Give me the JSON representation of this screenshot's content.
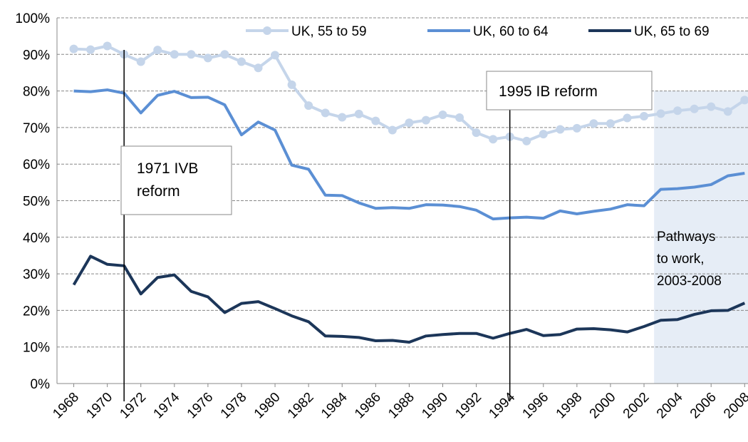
{
  "chart_data": {
    "type": "line",
    "x": [
      1968,
      1969,
      1970,
      1971,
      1972,
      1973,
      1974,
      1975,
      1976,
      1977,
      1978,
      1979,
      1980,
      1981,
      1982,
      1983,
      1984,
      1985,
      1986,
      1987,
      1988,
      1989,
      1990,
      1991,
      1992,
      1993,
      1994,
      1995,
      1996,
      1997,
      1998,
      1999,
      2000,
      2001,
      2002,
      2003,
      2004,
      2005,
      2006,
      2007,
      2008
    ],
    "xlim": [
      1967,
      2008.2
    ],
    "xticks": [
      1968,
      1970,
      1972,
      1974,
      1976,
      1978,
      1980,
      1982,
      1984,
      1986,
      1988,
      1990,
      1992,
      1994,
      1996,
      1998,
      2000,
      2002,
      2004,
      2006,
      2008
    ],
    "ylim": [
      0,
      100
    ],
    "yticks": [
      {
        "value": 0,
        "label": "0%"
      },
      {
        "value": 10,
        "label": "10%"
      },
      {
        "value": 20,
        "label": "20%"
      },
      {
        "value": 30,
        "label": "30%"
      },
      {
        "value": 40,
        "label": "40%"
      },
      {
        "value": 50,
        "label": "50%"
      },
      {
        "value": 60,
        "label": "60%"
      },
      {
        "value": 70,
        "label": "70%"
      },
      {
        "value": 80,
        "label": "80%"
      },
      {
        "value": 90,
        "label": "90%"
      },
      {
        "value": 100,
        "label": "100%"
      }
    ],
    "grid": true,
    "legend": "top",
    "series": [
      {
        "name": "UK, 55 to 59",
        "color": "#c5d5ea",
        "marker": "circle",
        "values": [
          91.5,
          91.3,
          92.3,
          90,
          88,
          91.2,
          90,
          90,
          89,
          90,
          88,
          86.3,
          89.8,
          81.7,
          76,
          74,
          72.8,
          73.7,
          71.8,
          69.3,
          71.3,
          72,
          73.5,
          72.7,
          68.6,
          66.8,
          67.5,
          66.3,
          68.2,
          69.5,
          69.8,
          71.1,
          71.1,
          72.6,
          73.1,
          73.8,
          74.6,
          75.1,
          75.7,
          74.4,
          77.5
        ]
      },
      {
        "name": "UK, 60 to 64",
        "color": "#5b8fd4",
        "values": [
          80,
          79.8,
          80.3,
          79.4,
          74,
          78.8,
          79.9,
          78.2,
          78.3,
          76.2,
          68,
          71.5,
          69.3,
          59.7,
          58.6,
          51.5,
          51.4,
          49.4,
          47.9,
          48.1,
          47.9,
          48.9,
          48.8,
          48.4,
          47.4,
          45,
          45.3,
          45.5,
          45.2,
          47.2,
          46.4,
          47.1,
          47.7,
          48.9,
          48.6,
          53.1,
          53.3,
          53.7,
          54.4,
          56.8,
          57.5
        ]
      },
      {
        "name": "UK, 65 to 69",
        "color": "#1c3659",
        "values": [
          27,
          34.8,
          32.6,
          32.2,
          24.5,
          29,
          29.7,
          25.2,
          23.7,
          19.4,
          21.9,
          22.4,
          20.5,
          18.5,
          16.9,
          13,
          12.9,
          12.6,
          11.7,
          11.8,
          11.3,
          13,
          13.4,
          13.7,
          13.7,
          12.4,
          13.7,
          14.8,
          13.1,
          13.4,
          14.9,
          15,
          14.7,
          14.1,
          15.6,
          17.3,
          17.5,
          18.9,
          19.9,
          20,
          22
        ]
      }
    ],
    "annotations": [
      {
        "lines": [
          "1971 IVB",
          "reform"
        ],
        "x": 1971
      },
      {
        "lines": [
          "1995 IB reform"
        ],
        "x": 1994
      }
    ],
    "shade": {
      "lines": [
        "Pathways",
        "to work,",
        "2003-2008"
      ],
      "x": [
        2002.6,
        2008.2
      ],
      "y": [
        0,
        80
      ],
      "color": "#dce6f2"
    }
  }
}
